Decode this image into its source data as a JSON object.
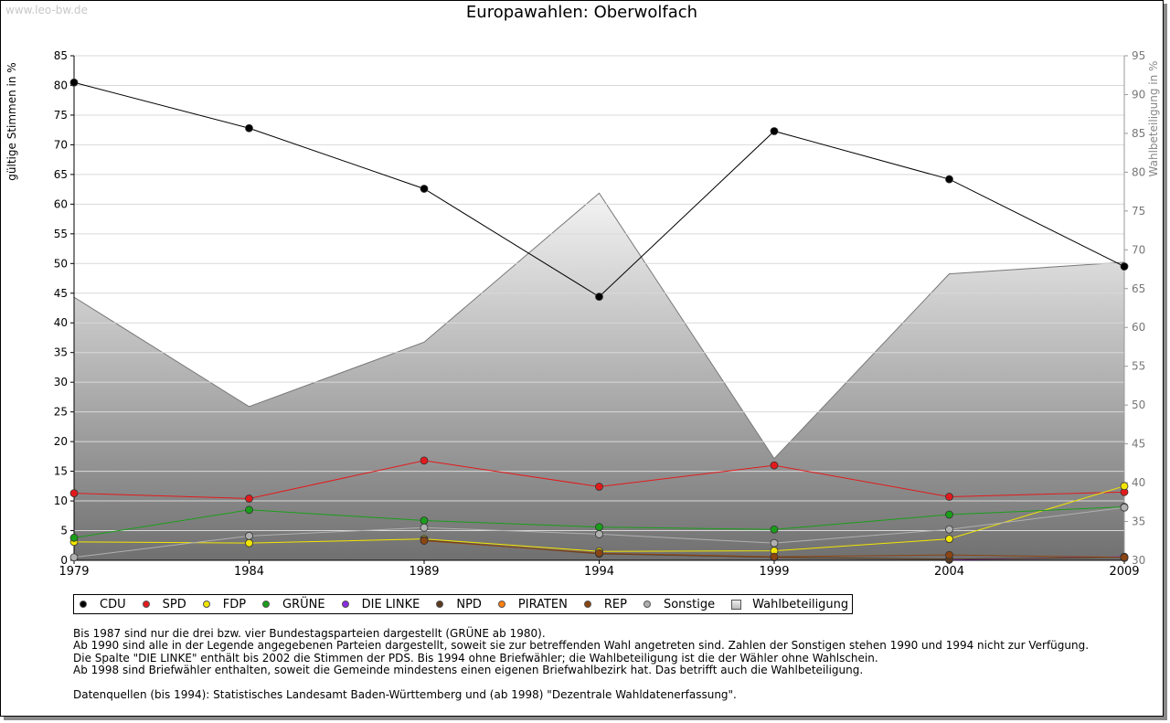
{
  "watermark": "www.leo-bw.de",
  "chart_data": {
    "type": "line",
    "title": "Europawahlen: Oberwolfach",
    "ylabel": "gültige Stimmen in %",
    "ylabel_right": "Wahlbeteiligung in %",
    "x": [
      1979,
      1984,
      1989,
      1994,
      1999,
      2004,
      2009
    ],
    "ylim": [
      0,
      85
    ],
    "yticks": [
      0,
      5,
      10,
      15,
      20,
      25,
      30,
      35,
      40,
      45,
      50,
      55,
      60,
      65,
      70,
      75,
      80,
      85
    ],
    "ylim_right": [
      30,
      95
    ],
    "yticks_right": [
      30,
      35,
      40,
      45,
      50,
      55,
      60,
      65,
      70,
      75,
      80,
      85,
      90,
      95
    ],
    "grid": true,
    "legend_position": "bottom",
    "series": [
      {
        "name": "CDU",
        "color": "#000000",
        "values": [
          80.5,
          72.8,
          62.6,
          44.4,
          72.3,
          64.2,
          49.5
        ]
      },
      {
        "name": "SPD",
        "color": "#e31a1c",
        "values": [
          11.3,
          10.4,
          16.8,
          12.4,
          16.0,
          10.7,
          11.5
        ]
      },
      {
        "name": "FDP",
        "color": "#f2e600",
        "values": [
          3.1,
          2.9,
          3.6,
          1.5,
          1.6,
          3.6,
          12.5
        ]
      },
      {
        "name": "GRÜNE",
        "color": "#1a9e1a",
        "values": [
          3.8,
          8.5,
          6.7,
          5.6,
          5.2,
          7.7,
          9.0
        ]
      },
      {
        "name": "DIE LINKE",
        "color": "#8a2be2",
        "values": [
          null,
          null,
          null,
          null,
          null,
          0.1,
          0.6
        ]
      },
      {
        "name": "NPD",
        "color": "#5a3a1e",
        "values": [
          null,
          null,
          3.4,
          1.1,
          0.5,
          0.2,
          0.5
        ]
      },
      {
        "name": "PIRATEN",
        "color": "#ff7f0e",
        "values": [
          null,
          null,
          null,
          null,
          null,
          null,
          0.4
        ]
      },
      {
        "name": "REP",
        "color": "#8b4513",
        "values": [
          null,
          null,
          3.3,
          1.2,
          0.6,
          0.9,
          0.5
        ]
      },
      {
        "name": "Sonstige",
        "color": "#b0b0b0",
        "values": [
          0.5,
          4.1,
          5.5,
          4.4,
          2.9,
          5.2,
          8.9
        ]
      }
    ],
    "turnout": {
      "name": "Wahlbeteiligung",
      "axis": "right",
      "type": "area",
      "values": [
        63.9,
        49.8,
        58.1,
        77.3,
        43.1,
        66.9,
        68.4
      ]
    }
  },
  "legend": [
    "CDU",
    "SPD",
    "FDP",
    "GRÜNE",
    "DIE LINKE",
    "NPD",
    "PIRATEN",
    "REP",
    "Sonstige",
    "Wahlbeteiligung"
  ],
  "notes": [
    "Bis 1987 sind nur die drei bzw. vier Bundestagsparteien dargestellt (GRÜNE ab 1980).",
    "Ab 1990 sind alle in der Legende angegebenen Parteien dargestellt, soweit sie zur betreffenden Wahl angetreten sind. Zahlen der Sonstigen stehen 1990 und 1994 nicht zur Verfügung.",
    "Die Spalte \"DIE LINKE\" enthält bis 2002 die Stimmen der PDS. Bis 1994 ohne Briefwähler; die Wahlbeteiligung ist die der Wähler ohne Wahlschein.",
    "Ab 1998 sind Briefwähler enthalten, soweit die Gemeinde mindestens einen eigenen Briefwahlbezirk hat. Das betrifft auch die Wahlbeteiligung."
  ],
  "source": "Datenquellen (bis 1994): Statistisches Landesamt Baden-Württemberg und (ab 1998) \"Dezentrale Wahldatenerfassung\"."
}
